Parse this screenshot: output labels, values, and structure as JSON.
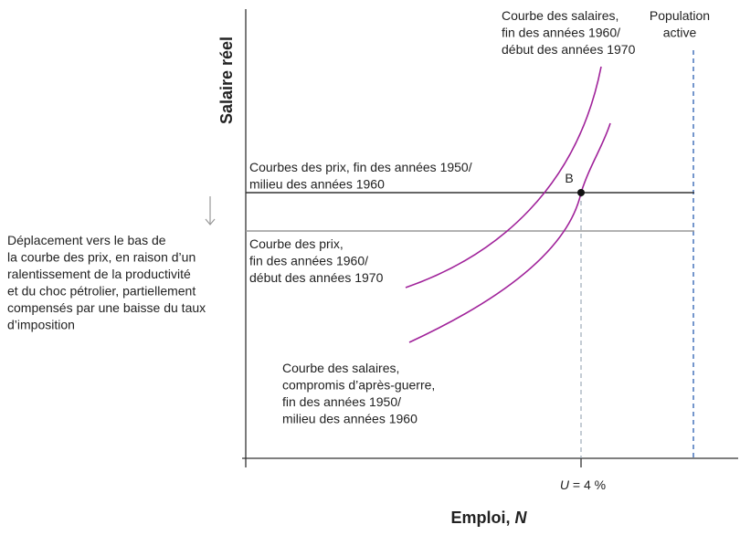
{
  "axes": {
    "y_label": "Salaire réel",
    "x_label": "Emploi,",
    "x_label_var": "N",
    "x_tick_var": "U",
    "x_tick_rest": " = 4 %"
  },
  "labels": {
    "point": "B",
    "wage_curve_late": [
      "Courbe des salaires,",
      "fin des années 1960/",
      "début des années 1970"
    ],
    "labor_force": [
      "Population",
      "active"
    ],
    "price_curve_early": [
      "Courbes des prix, fin des années 1950/",
      "milieu des années 1960"
    ],
    "price_curve_late": [
      "Courbe des prix,",
      "fin des années 1960/",
      "début des années 1970"
    ],
    "wage_curve_early": [
      "Courbe des salaires,",
      "compromis d’après-guerre,",
      "fin des années 1950/",
      "milieu des années 1960"
    ],
    "shift_note": [
      "Déplacement vers le bas de",
      "la courbe des prix, en raison d’un",
      "ralentissement de la productivité",
      "et du choc pétrolier, partiellement",
      "compensés par une baisse du taux",
      "d’imposition"
    ]
  }
}
